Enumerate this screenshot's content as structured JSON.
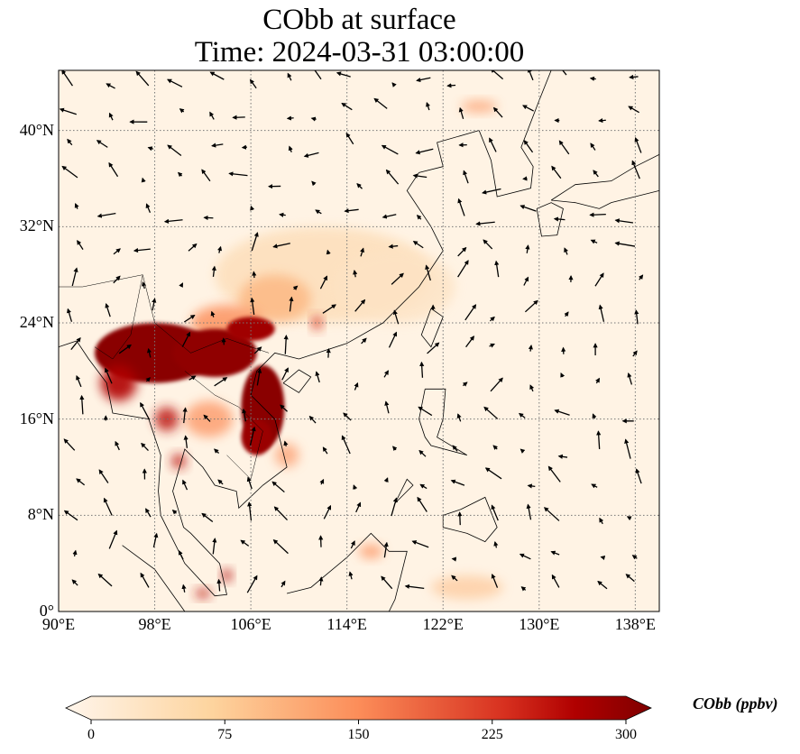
{
  "title": {
    "line1": "CObb at surface",
    "line2": "Time: 2024-03-31 03:00:00"
  },
  "map": {
    "projection": "PlateCarree",
    "lon_range": [
      90,
      140
    ],
    "lat_range": [
      0,
      45
    ],
    "x_ticks": [
      "90°E",
      "98°E",
      "106°E",
      "114°E",
      "122°E",
      "130°E",
      "138°E"
    ],
    "y_ticks": [
      "0°",
      "8°N",
      "16°N",
      "24°N",
      "32°N",
      "40°N"
    ],
    "gridlines": true,
    "overlay": "wind vectors"
  },
  "colorbar": {
    "label": "CObb (ppbv)",
    "ticks": [
      "0",
      "75",
      "150",
      "225",
      "300"
    ],
    "range": [
      0,
      300
    ],
    "extend": "both",
    "colormap": [
      "#fff5eb",
      "#fdd49e",
      "#fc8d59",
      "#d7301f",
      "#b00000",
      "#7f0000"
    ]
  }
}
